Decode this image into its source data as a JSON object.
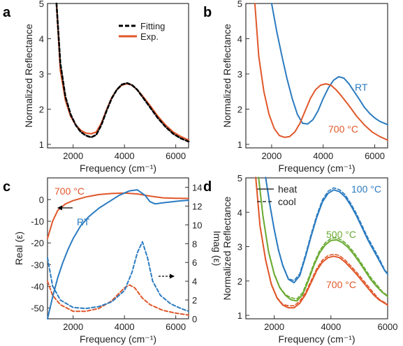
{
  "colors": {
    "exp": "#e0572a",
    "fit": "#000000",
    "rt": "#2b7bc0",
    "c500": "#6aaa32",
    "c700": "#e0572a"
  },
  "chart_data": [
    {
      "panel": "a",
      "type": "line",
      "xlabel": "Frequency (cm⁻¹)",
      "ylabel": "Normalized Reflectance",
      "xlim": [
        1000,
        6500
      ],
      "ylim": [
        0.9,
        5.0
      ],
      "xticks": [
        2000,
        4000,
        6000
      ],
      "yticks": [
        1,
        2,
        3,
        4,
        5
      ],
      "legend": {
        "placement": "top-right",
        "items": [
          "Fitting",
          "Exp."
        ]
      },
      "series": [
        {
          "name": "Fitting",
          "style": "dashed",
          "x": [
            1350,
            1500,
            1700,
            1900,
            2100,
            2300,
            2500,
            2700,
            2900,
            3100,
            3300,
            3500,
            3700,
            3900,
            4100,
            4300,
            4500,
            4700,
            5000,
            5300,
            5600,
            5900,
            6200,
            6500
          ],
          "y": [
            5.0,
            3.3,
            2.35,
            1.85,
            1.55,
            1.35,
            1.25,
            1.2,
            1.27,
            1.55,
            1.95,
            2.3,
            2.55,
            2.7,
            2.74,
            2.68,
            2.55,
            2.35,
            2.05,
            1.75,
            1.5,
            1.3,
            1.17,
            1.08
          ]
        },
        {
          "name": "Exp.",
          "style": "solid",
          "x": [
            1350,
            1500,
            1700,
            1900,
            2100,
            2300,
            2500,
            2700,
            2900,
            3100,
            3300,
            3500,
            3700,
            3900,
            4100,
            4300,
            4500,
            4700,
            5000,
            5300,
            5600,
            5900,
            6200,
            6500
          ],
          "y": [
            5.0,
            3.1,
            2.25,
            1.8,
            1.55,
            1.4,
            1.32,
            1.3,
            1.35,
            1.6,
            1.98,
            2.32,
            2.55,
            2.68,
            2.72,
            2.68,
            2.55,
            2.38,
            2.1,
            1.8,
            1.55,
            1.35,
            1.22,
            1.12
          ]
        }
      ]
    },
    {
      "panel": "b",
      "type": "line",
      "xlabel": "Frequency (cm⁻¹)",
      "ylabel": "Normalized Reflectance",
      "xlim": [
        1000,
        6500
      ],
      "ylim": [
        0.9,
        5.0
      ],
      "xticks": [
        2000,
        4000,
        6000
      ],
      "yticks": [
        1,
        2,
        3,
        4,
        5
      ],
      "annotations": [
        "RT",
        "700 °C"
      ],
      "series": [
        {
          "label": "RT",
          "x": [
            2000,
            2200,
            2400,
            2600,
            2800,
            3000,
            3200,
            3400,
            3600,
            3800,
            4000,
            4200,
            4400,
            4600,
            4800,
            5000,
            5200,
            5400,
            5600,
            5800,
            6000,
            6200,
            6500
          ],
          "y": [
            5.0,
            4.2,
            3.5,
            2.85,
            2.3,
            1.85,
            1.6,
            1.58,
            1.7,
            1.95,
            2.3,
            2.6,
            2.82,
            2.92,
            2.88,
            2.72,
            2.5,
            2.28,
            2.05,
            1.88,
            1.75,
            1.65,
            1.56
          ]
        },
        {
          "label": "700 °C",
          "x": [
            1350,
            1500,
            1700,
            1900,
            2100,
            2300,
            2500,
            2700,
            2900,
            3100,
            3300,
            3500,
            3700,
            3900,
            4100,
            4300,
            4500,
            4700,
            5000,
            5300,
            5600,
            5900,
            6200,
            6500
          ],
          "y": [
            5.0,
            3.5,
            2.5,
            1.85,
            1.45,
            1.25,
            1.2,
            1.22,
            1.35,
            1.6,
            1.95,
            2.3,
            2.55,
            2.68,
            2.72,
            2.68,
            2.55,
            2.38,
            2.1,
            1.8,
            1.55,
            1.35,
            1.22,
            1.12
          ]
        }
      ]
    },
    {
      "panel": "c",
      "type": "line",
      "xlabel": "Frequency (cm⁻¹)",
      "ylabel": "Real (ε)",
      "y2label": "Imag (ε)",
      "xlim": [
        1000,
        6500
      ],
      "ylim": [
        -55,
        10
      ],
      "y2lim": [
        0,
        15
      ],
      "xticks": [
        2000,
        4000,
        6000
      ],
      "yticks": [
        -50,
        -40,
        -30,
        -20,
        -10,
        0
      ],
      "y2ticks": [
        0,
        2,
        4,
        6,
        8,
        10,
        12,
        14
      ],
      "annotations": [
        "700 °C",
        "RT"
      ],
      "series": [
        {
          "label": "700 °C Real",
          "axis": "left",
          "style": "solid",
          "x": [
            1000,
            1200,
            1400,
            1700,
            2000,
            2500,
            3000,
            3500,
            4000,
            4500,
            5000,
            5500,
            6000,
            6500
          ],
          "y": [
            -18,
            -10,
            -5,
            -2,
            -0.5,
            1.2,
            2.3,
            2.8,
            3.0,
            2.6,
            1.6,
            0.8,
            0.6,
            0.5
          ]
        },
        {
          "label": "RT Real",
          "axis": "left",
          "style": "solid",
          "x": [
            1000,
            1200,
            1400,
            1600,
            1800,
            2000,
            2300,
            2600,
            3000,
            3400,
            3800,
            4200,
            4500,
            4800,
            5000,
            5200,
            5500,
            6000,
            6500
          ],
          "y": [
            -55,
            -45,
            -36,
            -29,
            -23,
            -18,
            -12,
            -8,
            -4,
            -1,
            2,
            4,
            4.5,
            2,
            -1,
            -2,
            -1.5,
            -0.8,
            -0.3
          ]
        },
        {
          "label": "RT Imag",
          "axis": "right",
          "style": "dashed",
          "x": [
            1000,
            1200,
            1500,
            2000,
            2500,
            3000,
            3500,
            4000,
            4300,
            4500,
            4700,
            4900,
            5100,
            5400,
            5800,
            6200,
            6500
          ],
          "y": [
            6.5,
            3.5,
            2.0,
            1.2,
            1.1,
            1.3,
            1.8,
            3.0,
            5.0,
            7.0,
            8.2,
            6.5,
            4.0,
            2.5,
            1.6,
            1.1,
            0.8
          ]
        },
        {
          "label": "700 °C Imag",
          "axis": "right",
          "style": "dashed",
          "x": [
            1000,
            1200,
            1500,
            2000,
            2500,
            3000,
            3500,
            4000,
            4200,
            4400,
            4700,
            5000,
            5500,
            6000,
            6500
          ],
          "y": [
            4.0,
            2.5,
            1.5,
            0.8,
            0.8,
            1.1,
            1.9,
            3.3,
            3.6,
            3.3,
            2.2,
            1.5,
            0.9,
            0.6,
            0.4
          ]
        }
      ]
    },
    {
      "panel": "d",
      "type": "line",
      "xlabel": "Frequency (cm⁻¹)",
      "ylabel": "Normalized Reflectance",
      "xlim": [
        1000,
        6000
      ],
      "ylim": [
        0.9,
        5.0
      ],
      "xticks": [
        2000,
        4000,
        6000
      ],
      "yticks": [
        1,
        2,
        3,
        4,
        5
      ],
      "legend": {
        "placement": "top-left",
        "items": [
          "heat",
          "cool"
        ]
      },
      "annotations": [
        "100 °C",
        "500 °C",
        "700 °C"
      ],
      "series": [
        {
          "label": "100 °C",
          "x": [
            1700,
            1850,
            2000,
            2150,
            2300,
            2500,
            2700,
            2900,
            3100,
            3300,
            3500,
            3700,
            3900,
            4100,
            4300,
            4500,
            4700,
            4900,
            5100,
            5300,
            5500,
            5700,
            5900,
            6000
          ],
          "y": [
            5.0,
            4.2,
            3.5,
            2.9,
            2.45,
            2.05,
            1.95,
            2.15,
            2.7,
            3.3,
            3.85,
            4.3,
            4.55,
            4.65,
            4.6,
            4.45,
            4.2,
            3.9,
            3.55,
            3.2,
            2.9,
            2.6,
            2.3,
            2.2
          ]
        },
        {
          "label": "500 °C",
          "x": [
            1450,
            1600,
            1800,
            2000,
            2200,
            2400,
            2600,
            2800,
            3000,
            3200,
            3400,
            3600,
            3800,
            4000,
            4200,
            4400,
            4600,
            4800,
            5000,
            5200,
            5400,
            5600,
            5800,
            6000
          ],
          "y": [
            5.0,
            3.9,
            2.85,
            2.2,
            1.8,
            1.58,
            1.45,
            1.42,
            1.6,
            2.0,
            2.45,
            2.82,
            3.05,
            3.18,
            3.2,
            3.12,
            2.98,
            2.78,
            2.55,
            2.3,
            2.05,
            1.85,
            1.68,
            1.55
          ]
        },
        {
          "label": "700 °C",
          "x": [
            1350,
            1500,
            1700,
            1900,
            2100,
            2300,
            2500,
            2700,
            2900,
            3100,
            3300,
            3500,
            3700,
            3900,
            4100,
            4300,
            4500,
            4700,
            4900,
            5100,
            5300,
            5500,
            5700,
            6000
          ],
          "y": [
            5.0,
            3.6,
            2.6,
            1.9,
            1.5,
            1.3,
            1.22,
            1.22,
            1.35,
            1.6,
            1.95,
            2.3,
            2.55,
            2.68,
            2.72,
            2.68,
            2.55,
            2.38,
            2.2,
            2.0,
            1.8,
            1.6,
            1.45,
            1.3
          ]
        }
      ]
    }
  ]
}
